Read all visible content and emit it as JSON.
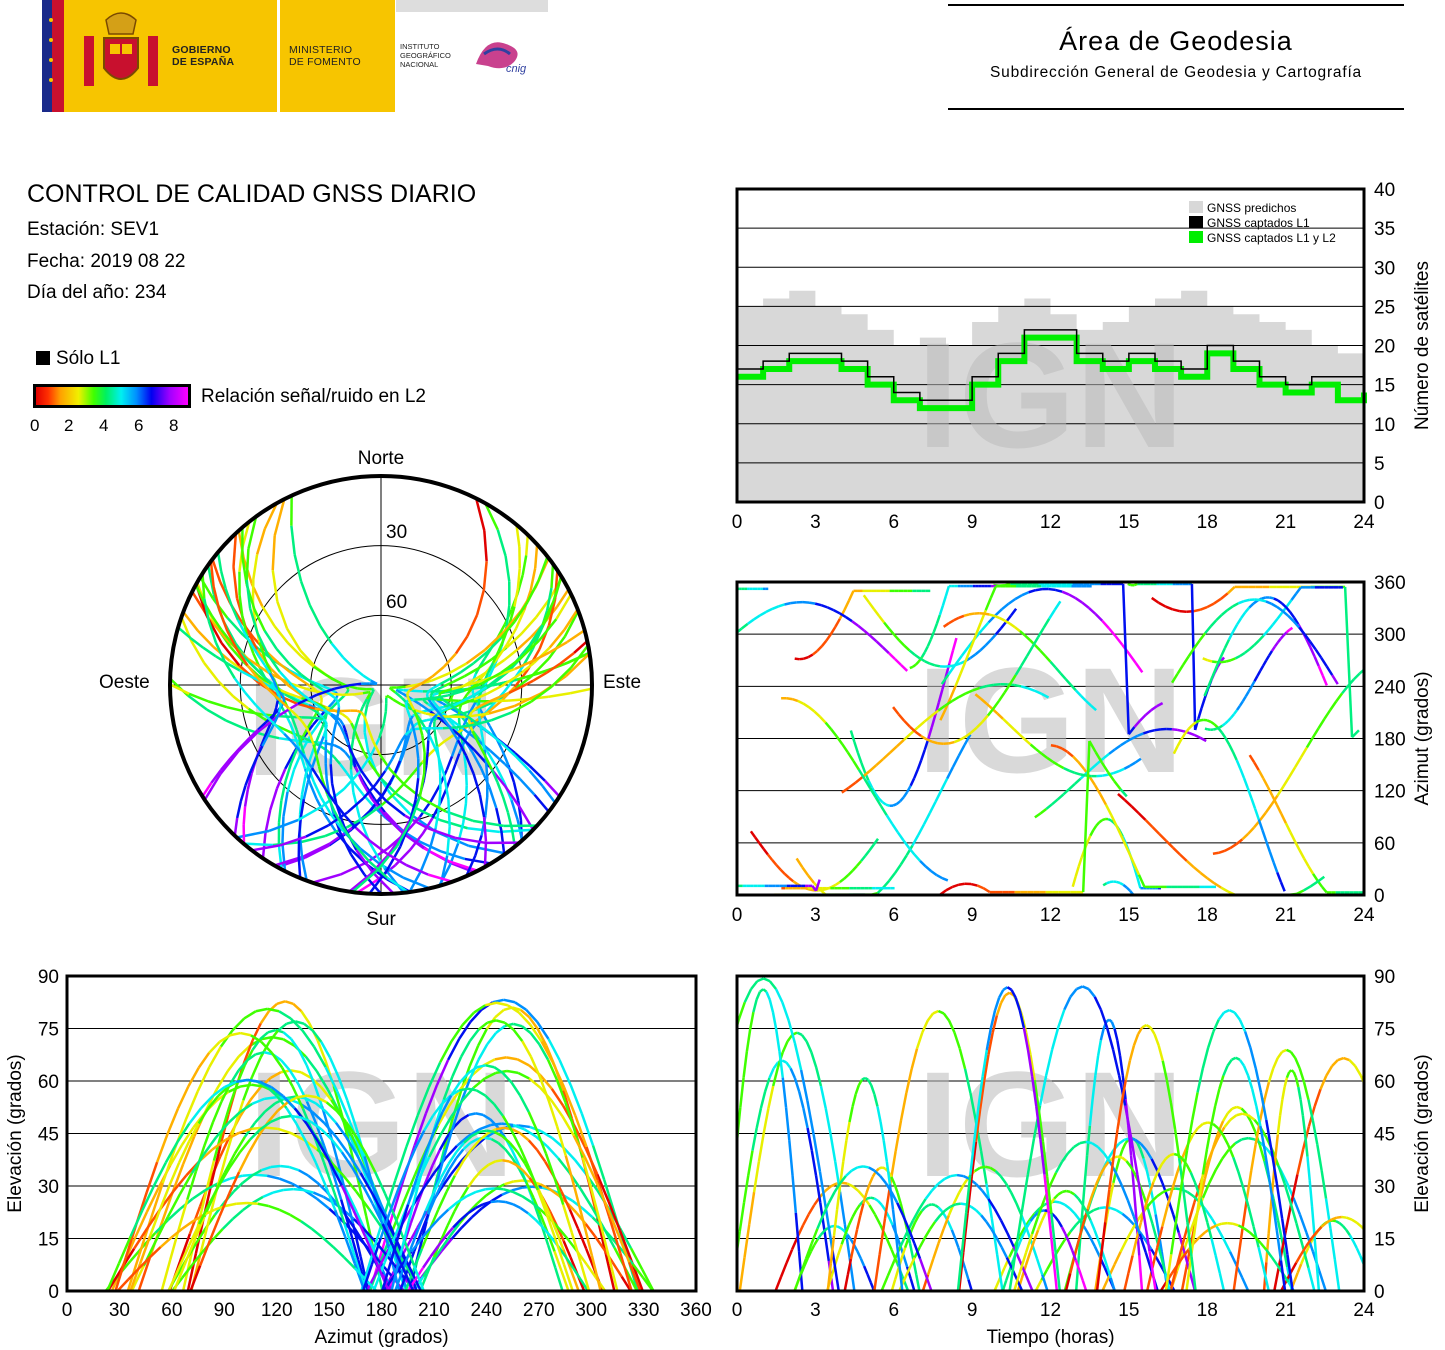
{
  "header": {
    "gov_line1": "GOBIERNO",
    "gov_line2": "DE ESPAÑA",
    "ministry_line1": "MINISTERIO",
    "ministry_line2": "DE FOMENTO",
    "institute_line1": "INSTITUTO",
    "institute_line2": "GEOGRÁFICO",
    "institute_line3": "NACIONAL",
    "cnig_mark": "cnig",
    "area_title": "Área de Geodesia",
    "area_subtitle": "Subdirección General de Geodesia y Cartografía"
  },
  "report": {
    "title": "CONTROL DE CALIDAD GNSS DIARIO",
    "station": "Estación: SEV1",
    "date": "Fecha: 2019 08 22",
    "doy": "Día del año: 234"
  },
  "legend": {
    "l1_only": "Sólo L1",
    "snr_label": "Relación señal/ruido en L2",
    "snr_ticks": [
      "0",
      "2",
      "4",
      "6",
      "8"
    ]
  },
  "colors": {
    "predicted": "#d8d8d8",
    "l1": "#000000",
    "l1l2": "#00ee00",
    "snr_scale": [
      "#e00000",
      "#ff5000",
      "#ffb000",
      "#e8f000",
      "#40ff00",
      "#00f080",
      "#00f0f0",
      "#0090ff",
      "#0010f0",
      "#a000ff",
      "#ff00ff"
    ]
  },
  "watermark": "IGN",
  "chart_data": [
    {
      "type": "line",
      "id": "satellite-count",
      "ylabel": "Número de satélites",
      "x_ticks": [
        "0",
        "3",
        "6",
        "9",
        "12",
        "15",
        "18",
        "21",
        "24"
      ],
      "y_ticks": [
        "0",
        "5",
        "10",
        "15",
        "20",
        "25",
        "30",
        "35",
        "40"
      ],
      "xlim": [
        0,
        24
      ],
      "ylim": [
        0,
        40
      ],
      "grid": true,
      "legend_position": "top-right",
      "series": [
        {
          "name": "GNSS predichos",
          "x": [
            0,
            1,
            2,
            3,
            4,
            5,
            6,
            7,
            8,
            9,
            10,
            11,
            12,
            13,
            14,
            15,
            16,
            17,
            18,
            19,
            20,
            21,
            22,
            23,
            24
          ],
          "values": [
            25,
            26,
            27,
            25,
            24,
            22,
            20,
            21,
            20,
            23,
            25,
            26,
            24,
            22,
            23,
            25,
            26,
            27,
            25,
            24,
            23,
            22,
            20,
            19,
            18
          ]
        },
        {
          "name": "GNSS captados L1",
          "x": [
            0,
            1,
            2,
            3,
            4,
            5,
            6,
            7,
            8,
            9,
            10,
            11,
            12,
            13,
            14,
            15,
            16,
            17,
            18,
            19,
            20,
            21,
            22,
            23,
            24
          ],
          "values": [
            17,
            18,
            19,
            19,
            18,
            16,
            14,
            13,
            13,
            16,
            19,
            22,
            22,
            19,
            18,
            19,
            18,
            17,
            20,
            18,
            16,
            15,
            16,
            16,
            15
          ]
        },
        {
          "name": "GNSS captados L1 y L2",
          "x": [
            0,
            1,
            2,
            3,
            4,
            5,
            6,
            7,
            8,
            9,
            10,
            11,
            12,
            13,
            14,
            15,
            16,
            17,
            18,
            19,
            20,
            21,
            22,
            23,
            24
          ],
          "values": [
            16,
            17,
            18,
            18,
            17,
            15,
            13,
            12,
            12,
            15,
            18,
            21,
            21,
            18,
            17,
            18,
            17,
            16,
            19,
            17,
            15,
            14,
            15,
            13,
            14
          ]
        }
      ]
    },
    {
      "type": "scatter",
      "id": "skyplot",
      "labels": {
        "north": "Norte",
        "south": "Sur",
        "east": "Este",
        "west": "Oeste"
      },
      "ring_labels": [
        "30",
        "60"
      ]
    },
    {
      "type": "scatter",
      "id": "azimuth-time",
      "ylabel": "Azimut (grados)",
      "x_ticks": [
        "0",
        "3",
        "6",
        "9",
        "12",
        "15",
        "18",
        "21",
        "24"
      ],
      "y_ticks": [
        "0",
        "60",
        "120",
        "180",
        "240",
        "300",
        "360"
      ],
      "xlim": [
        0,
        24
      ],
      "ylim": [
        0,
        360
      ],
      "grid": true
    },
    {
      "type": "scatter",
      "id": "elevation-azimuth",
      "xlabel": "Azimut (grados)",
      "ylabel": "Elevación (grados)",
      "x_ticks": [
        "0",
        "30",
        "60",
        "90",
        "120",
        "150",
        "180",
        "210",
        "240",
        "270",
        "300",
        "330",
        "360"
      ],
      "y_ticks": [
        "0",
        "15",
        "30",
        "45",
        "60",
        "75",
        "90"
      ],
      "xlim": [
        0,
        360
      ],
      "ylim": [
        0,
        90
      ],
      "grid": true
    },
    {
      "type": "scatter",
      "id": "elevation-time",
      "xlabel": "Tiempo (horas)",
      "ylabel": "Elevación (grados)",
      "x_ticks": [
        "0",
        "3",
        "6",
        "9",
        "12",
        "15",
        "18",
        "21",
        "24"
      ],
      "y_ticks": [
        "0",
        "15",
        "30",
        "45",
        "60",
        "75",
        "90"
      ],
      "xlim": [
        0,
        24
      ],
      "ylim": [
        0,
        90
      ],
      "grid": true
    }
  ]
}
